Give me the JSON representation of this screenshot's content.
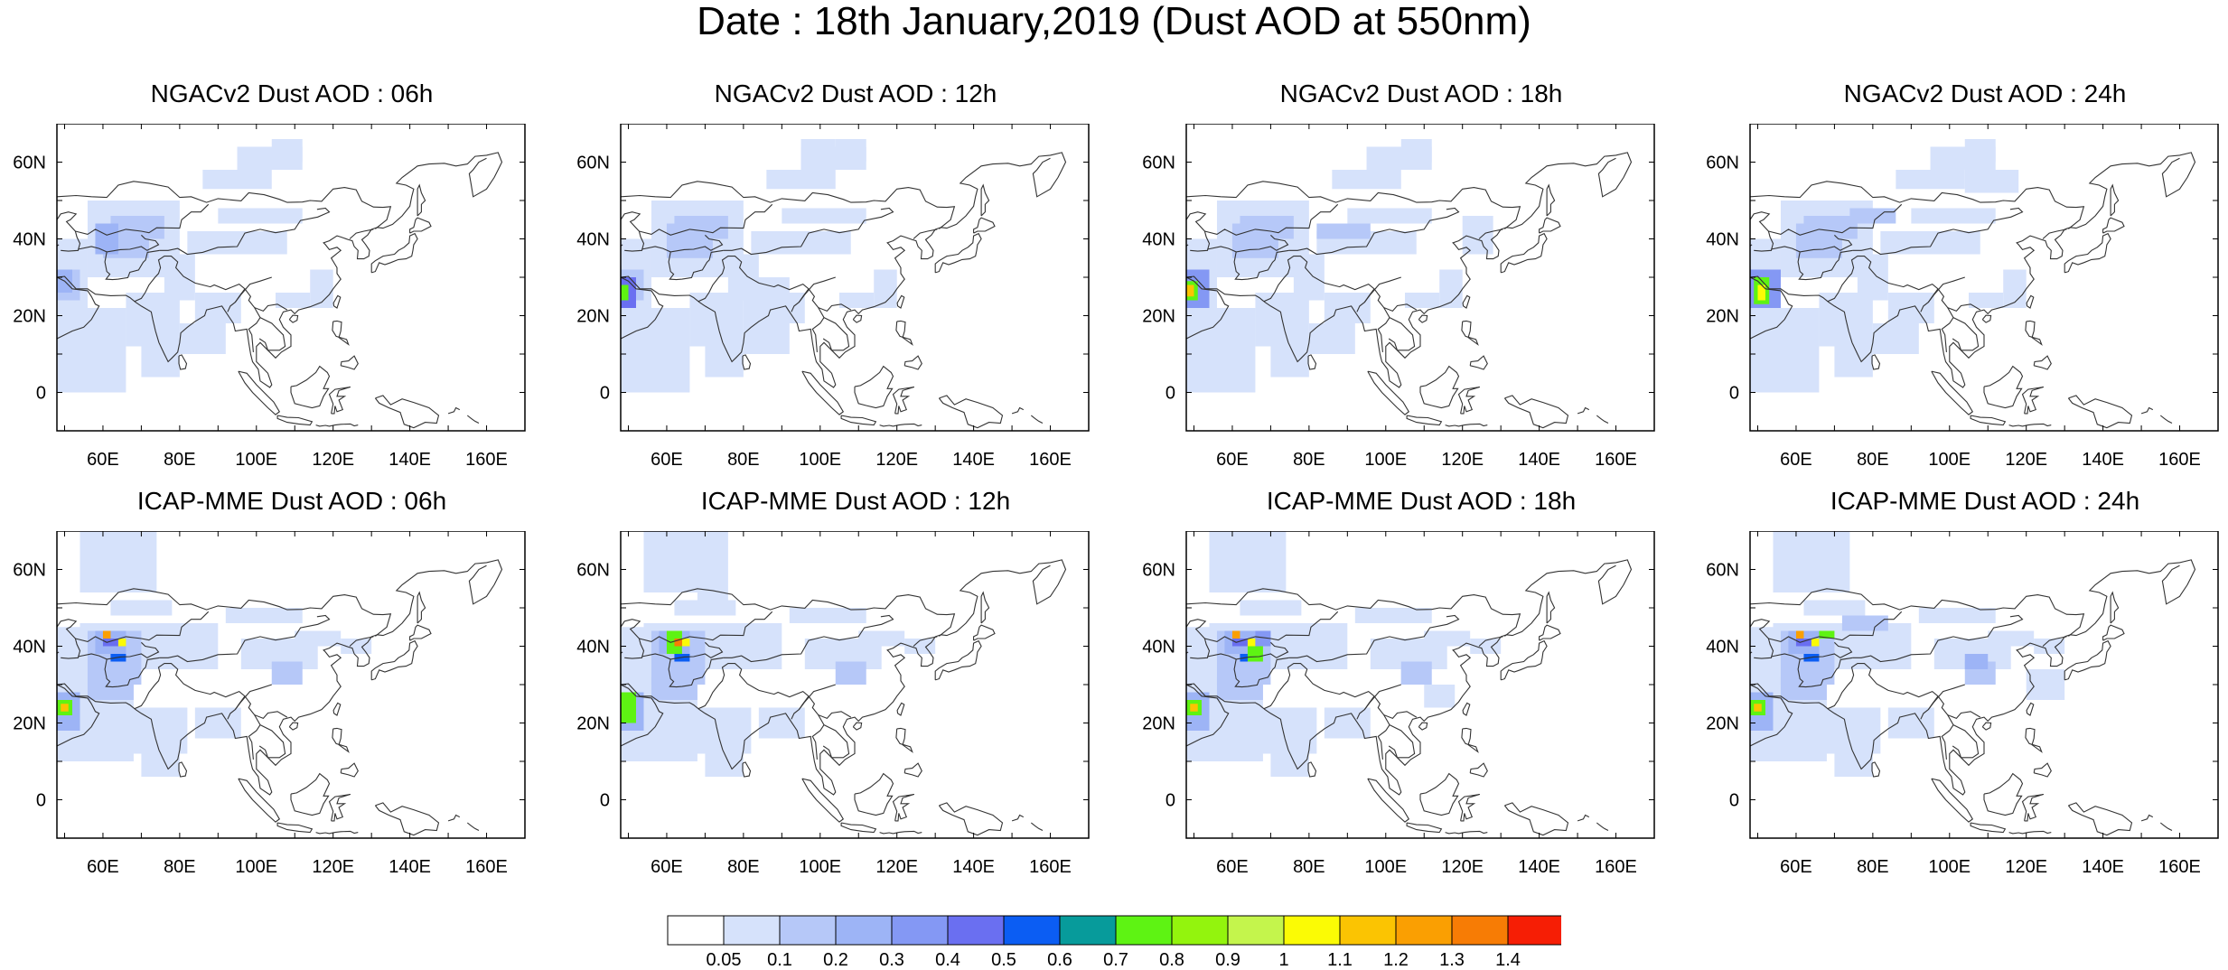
{
  "title": "Date : 18th January,2019 (Dust AOD at 550nm)",
  "map": {
    "lon_range": [
      48,
      170
    ],
    "lat_range": [
      -10,
      70
    ],
    "lon_ticks": [
      "60E",
      "80E",
      "100E",
      "120E",
      "140E",
      "160E"
    ],
    "lat_ticks": [
      "60N",
      "40N",
      "20N",
      "0"
    ]
  },
  "panels": [
    {
      "title": "NGACv2 Dust AOD : 06h",
      "model": "NGACv2",
      "hour": "06h"
    },
    {
      "title": "NGACv2 Dust AOD : 12h",
      "model": "NGACv2",
      "hour": "12h"
    },
    {
      "title": "NGACv2 Dust AOD : 18h",
      "model": "NGACv2",
      "hour": "18h"
    },
    {
      "title": "NGACv2 Dust AOD : 24h",
      "model": "NGACv2",
      "hour": "24h"
    },
    {
      "title": "ICAP-MME Dust AOD : 06h",
      "model": "ICAP-MME",
      "hour": "06h"
    },
    {
      "title": "ICAP-MME Dust AOD : 12h",
      "model": "ICAP-MME",
      "hour": "12h"
    },
    {
      "title": "ICAP-MME Dust AOD : 18h",
      "model": "ICAP-MME",
      "hour": "18h"
    },
    {
      "title": "ICAP-MME Dust AOD : 24h",
      "model": "ICAP-MME",
      "hour": "24h"
    }
  ],
  "colorbar": {
    "labels": [
      "0.05",
      "0.1",
      "0.2",
      "0.3",
      "0.4",
      "0.5",
      "0.6",
      "0.7",
      "0.8",
      "0.9",
      "1",
      "1.1",
      "1.2",
      "1.3",
      "1.4"
    ],
    "colors": [
      "#ffffff",
      "#d6e2fb",
      "#b6c8f8",
      "#9db4f6",
      "#8498f4",
      "#6a6ff1",
      "#0b5df3",
      "#079b9b",
      "#5ef313",
      "#93f40d",
      "#c4f54c",
      "#fbfb05",
      "#fbc402",
      "#fa9f02",
      "#f77c05",
      "#f61e05"
    ]
  },
  "colors": {
    "land_outline": "#333333",
    "background": "#ffffff"
  }
}
